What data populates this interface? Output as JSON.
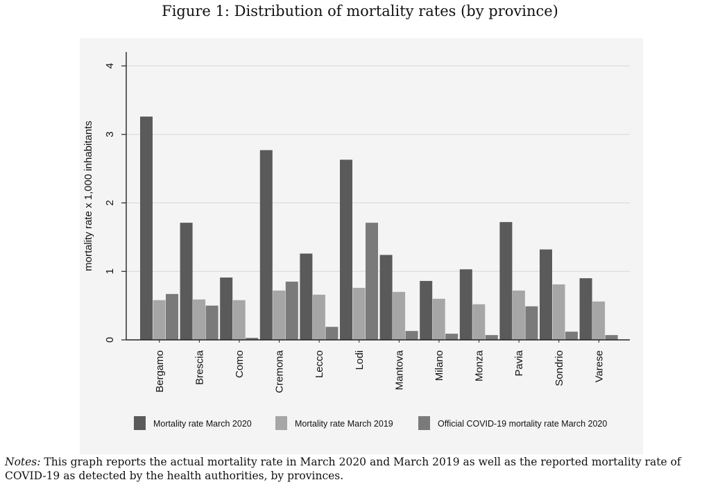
{
  "figure": {
    "title": "Figure 1: Distribution of mortality rates (by province)",
    "notes_label": "Notes:",
    "notes_text": " This graph reports the actual mortality rate in March 2020 and March 2019 as well as the reported mortality rate of COVID-19 as detected by the health authorities, by provinces."
  },
  "chart_data": {
    "type": "bar",
    "title": "",
    "xlabel": "",
    "ylabel": "mortality rate x 1,000 inhabitants",
    "ylim": [
      0,
      4
    ],
    "yticks": [
      0,
      1,
      2,
      3,
      4
    ],
    "grid": true,
    "legend_position": "bottom",
    "categories": [
      "Bergamo",
      "Brescia",
      "Como",
      "Cremona",
      "Lecco",
      "Lodi",
      "Mantova",
      "Milano",
      "Monza",
      "Pavia",
      "Sondrio",
      "Varese"
    ],
    "series": [
      {
        "name": "Mortality rate March 2020",
        "color": "#5a5a5a",
        "values": [
          3.26,
          1.71,
          0.91,
          2.77,
          1.26,
          2.63,
          1.24,
          0.86,
          1.03,
          1.72,
          1.32,
          0.9
        ]
      },
      {
        "name": "Mortality rate March 2019",
        "color": "#a6a6a6",
        "values": [
          0.58,
          0.59,
          0.58,
          0.72,
          0.66,
          0.76,
          0.7,
          0.6,
          0.52,
          0.72,
          0.81,
          0.56
        ]
      },
      {
        "name": "Official COVID-19 mortality rate March 2020",
        "color": "#7a7a7a",
        "values": [
          0.67,
          0.5,
          0.03,
          0.85,
          0.19,
          1.71,
          0.13,
          0.09,
          0.07,
          0.49,
          0.12,
          0.07
        ]
      }
    ]
  }
}
